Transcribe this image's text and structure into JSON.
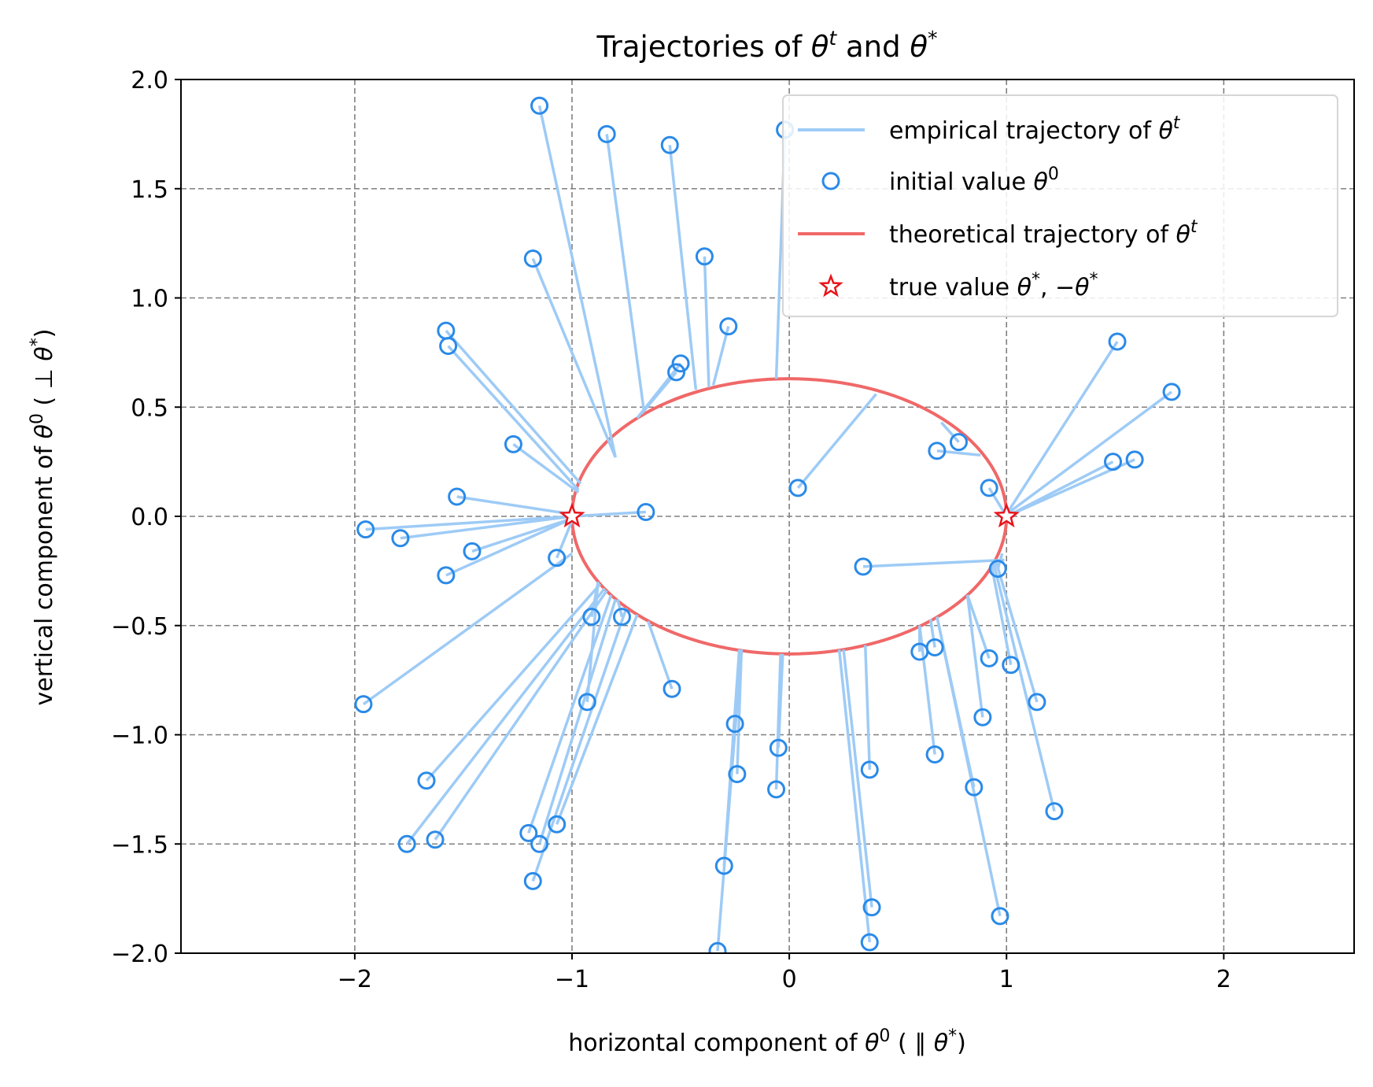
{
  "chart_data": {
    "type": "scatter",
    "title": "Trajectories of θ^t and θ^*",
    "xlabel": "horizontal component of θ^0 ( ∥ θ^* )",
    "ylabel": "vertical component of θ^0 ( ⊥ θ^* )",
    "xlim": [
      -2.8,
      2.6
    ],
    "ylim": [
      -2.0,
      2.0
    ],
    "x_ticks": [
      -2,
      -1,
      0,
      1,
      2
    ],
    "x_tick_labels": [
      "−2",
      "−1",
      "0",
      "1",
      "2"
    ],
    "y_ticks": [
      2.0,
      1.5,
      1.0,
      0.5,
      0.0,
      -0.5,
      -1.0,
      -1.5,
      -2.0
    ],
    "y_tick_labels": [
      "2.0",
      "1.5",
      "1.0",
      "0.5",
      "0.0",
      "−0.5",
      "−1.0",
      "−1.5",
      "−2.0"
    ],
    "grid": true,
    "legend_position": "top-right",
    "colors": {
      "empirical": "#9ecbf6",
      "initial": "#2a8ae8",
      "theoretical": "#f06868",
      "true_value": "#e8141c",
      "grid": "#808080"
    },
    "legend": [
      {
        "key": "empirical",
        "label": "empirical trajectory of θ^t"
      },
      {
        "key": "initial",
        "label": "initial value θ^0"
      },
      {
        "key": "theoretical",
        "label": "theoretical trajectory of θ^t"
      },
      {
        "key": "true_value",
        "label": "true value θ^*, −θ^*"
      }
    ],
    "theoretical_trajectory": {
      "shape": "ellipse",
      "center": [
        0,
        0
      ],
      "x_radius": 1.0,
      "y_radius": 0.63
    },
    "true_values": [
      [
        -1,
        0
      ],
      [
        1,
        0
      ]
    ],
    "empirical_trajectories": [
      {
        "start": [
          -1.15,
          1.88
        ],
        "end": [
          -0.8,
          0.27
        ]
      },
      {
        "start": [
          -0.84,
          1.75
        ],
        "end": [
          -0.67,
          0.49
        ]
      },
      {
        "start": [
          -0.55,
          1.7
        ],
        "end": [
          -0.43,
          0.58
        ]
      },
      {
        "start": [
          -0.02,
          1.77
        ],
        "end": [
          -0.06,
          0.63
        ]
      },
      {
        "start": [
          -1.18,
          1.18
        ],
        "end": [
          -0.8,
          0.27
        ]
      },
      {
        "start": [
          -0.39,
          1.19
        ],
        "end": [
          -0.37,
          0.59
        ]
      },
      {
        "start": [
          -0.28,
          0.87
        ],
        "end": [
          -0.35,
          0.6
        ]
      },
      {
        "start": [
          -0.5,
          0.7
        ],
        "end": [
          -0.7,
          0.45
        ]
      },
      {
        "start": [
          -0.52,
          0.66
        ],
        "end": [
          -0.68,
          0.47
        ]
      },
      {
        "start": [
          -1.58,
          0.85
        ],
        "end": [
          -0.96,
          0.15
        ]
      },
      {
        "start": [
          -1.57,
          0.78
        ],
        "end": [
          -0.97,
          0.12
        ]
      },
      {
        "start": [
          -1.27,
          0.33
        ],
        "end": [
          -0.97,
          0.11
        ]
      },
      {
        "start": [
          -1.53,
          0.09
        ],
        "end": [
          -1.0,
          0.01
        ]
      },
      {
        "start": [
          -0.66,
          0.02
        ],
        "end": [
          -1.0,
          0.0
        ]
      },
      {
        "start": [
          -1.95,
          -0.06
        ],
        "end": [
          -1.0,
          0.0
        ]
      },
      {
        "start": [
          -1.79,
          -0.1
        ],
        "end": [
          -1.0,
          0.0
        ]
      },
      {
        "start": [
          -1.46,
          -0.16
        ],
        "end": [
          -1.0,
          -0.01
        ]
      },
      {
        "start": [
          -1.58,
          -0.27
        ],
        "end": [
          -1.0,
          -0.01
        ]
      },
      {
        "start": [
          -1.07,
          -0.19
        ],
        "end": [
          -1.0,
          -0.02
        ]
      },
      {
        "start": [
          -1.96,
          -0.86
        ],
        "end": [
          -1.0,
          -0.17
        ]
      },
      {
        "start": [
          -0.91,
          -0.46
        ],
        "end": [
          -0.88,
          -0.3
        ]
      },
      {
        "start": [
          -0.77,
          -0.46
        ],
        "end": [
          -0.79,
          -0.38
        ]
      },
      {
        "start": [
          -0.93,
          -0.85
        ],
        "end": [
          -0.88,
          -0.3
        ]
      },
      {
        "start": [
          -0.54,
          -0.79
        ],
        "end": [
          -0.65,
          -0.48
        ]
      },
      {
        "start": [
          -1.67,
          -1.21
        ],
        "end": [
          -0.87,
          -0.31
        ]
      },
      {
        "start": [
          -1.76,
          -1.5
        ],
        "end": [
          -0.85,
          -0.33
        ]
      },
      {
        "start": [
          -1.63,
          -1.48
        ],
        "end": [
          -0.84,
          -0.34
        ]
      },
      {
        "start": [
          -1.2,
          -1.45
        ],
        "end": [
          -0.82,
          -0.36
        ]
      },
      {
        "start": [
          -1.15,
          -1.5
        ],
        "end": [
          -0.8,
          -0.38
        ]
      },
      {
        "start": [
          -1.07,
          -1.41
        ],
        "end": [
          -0.7,
          -0.45
        ]
      },
      {
        "start": [
          -1.18,
          -1.67
        ],
        "end": [
          -0.75,
          -0.42
        ]
      },
      {
        "start": [
          -0.25,
          -0.95
        ],
        "end": [
          -0.23,
          -0.61
        ]
      },
      {
        "start": [
          -0.24,
          -1.18
        ],
        "end": [
          -0.22,
          -0.61
        ]
      },
      {
        "start": [
          -0.3,
          -1.6
        ],
        "end": [
          -0.23,
          -0.61
        ]
      },
      {
        "start": [
          -0.33,
          -1.99
        ],
        "end": [
          -0.22,
          -0.61
        ]
      },
      {
        "start": [
          -0.05,
          -1.06
        ],
        "end": [
          -0.03,
          -0.63
        ]
      },
      {
        "start": [
          -0.06,
          -1.25
        ],
        "end": [
          -0.04,
          -0.63
        ]
      },
      {
        "start": [
          0.04,
          0.13
        ],
        "end": [
          0.4,
          0.56
        ]
      },
      {
        "start": [
          0.78,
          0.34
        ],
        "end": [
          0.7,
          0.43
        ]
      },
      {
        "start": [
          0.68,
          0.3
        ],
        "end": [
          0.88,
          0.28
        ]
      },
      {
        "start": [
          0.92,
          0.13
        ],
        "end": [
          1.0,
          0.0
        ]
      },
      {
        "start": [
          1.51,
          0.8
        ],
        "end": [
          1.0,
          0.01
        ]
      },
      {
        "start": [
          1.76,
          0.57
        ],
        "end": [
          1.0,
          0.01
        ]
      },
      {
        "start": [
          1.59,
          0.26
        ],
        "end": [
          1.0,
          0.0
        ]
      },
      {
        "start": [
          1.49,
          0.25
        ],
        "end": [
          1.0,
          0.0
        ]
      },
      {
        "start": [
          0.34,
          -0.23
        ],
        "end": [
          0.99,
          -0.2
        ]
      },
      {
        "start": [
          0.96,
          -0.24
        ],
        "end": [
          0.98,
          -0.17
        ]
      },
      {
        "start": [
          0.6,
          -0.62
        ],
        "end": [
          0.6,
          -0.5
        ]
      },
      {
        "start": [
          0.67,
          -0.6
        ],
        "end": [
          0.65,
          -0.47
        ]
      },
      {
        "start": [
          0.92,
          -0.65
        ],
        "end": [
          0.82,
          -0.36
        ]
      },
      {
        "start": [
          1.02,
          -0.68
        ],
        "end": [
          0.93,
          -0.22
        ]
      },
      {
        "start": [
          1.14,
          -0.85
        ],
        "end": [
          0.95,
          -0.2
        ]
      },
      {
        "start": [
          0.89,
          -0.92
        ],
        "end": [
          0.82,
          -0.36
        ]
      },
      {
        "start": [
          0.67,
          -1.09
        ],
        "end": [
          0.6,
          -0.5
        ]
      },
      {
        "start": [
          0.85,
          -1.24
        ],
        "end": [
          0.68,
          -0.46
        ]
      },
      {
        "start": [
          1.22,
          -1.35
        ],
        "end": [
          0.94,
          -0.21
        ]
      },
      {
        "start": [
          0.97,
          -1.83
        ],
        "end": [
          0.68,
          -0.46
        ]
      },
      {
        "start": [
          0.37,
          -1.16
        ],
        "end": [
          0.35,
          -0.59
        ]
      },
      {
        "start": [
          0.38,
          -1.79
        ],
        "end": [
          0.25,
          -0.61
        ]
      },
      {
        "start": [
          0.37,
          -1.95
        ],
        "end": [
          0.23,
          -0.61
        ]
      }
    ]
  }
}
